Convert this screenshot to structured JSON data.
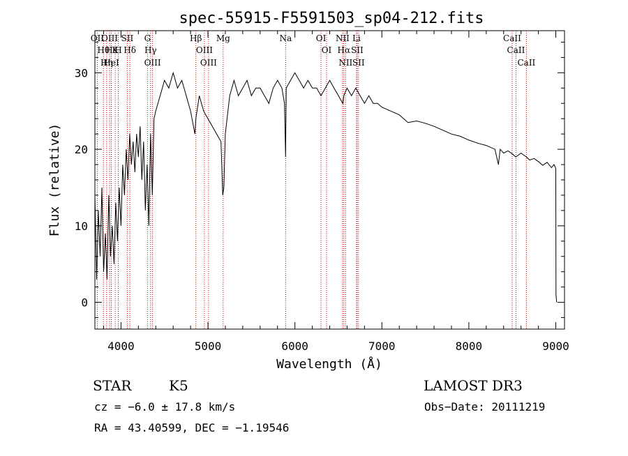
{
  "chart_data": {
    "type": "line",
    "title": "spec-55915-F5591503_sp04-212.fits",
    "xlabel": "Wavelength (Å)",
    "ylabel": "Flux (relative)",
    "xlim": [
      3700,
      9100
    ],
    "ylim": [
      -3.5,
      35.5
    ],
    "x_ticks": [
      4000,
      5000,
      6000,
      7000,
      8000,
      9000
    ],
    "y_ticks": [
      0,
      10,
      20,
      30
    ],
    "grid": false,
    "series": [
      {
        "name": "spectrum",
        "x": [
          3700,
          3720,
          3740,
          3760,
          3780,
          3800,
          3820,
          3840,
          3860,
          3880,
          3900,
          3920,
          3940,
          3960,
          3980,
          4000,
          4020,
          4040,
          4060,
          4080,
          4100,
          4120,
          4140,
          4160,
          4180,
          4200,
          4220,
          4240,
          4260,
          4280,
          4300,
          4320,
          4340,
          4360,
          4380,
          4400,
          4450,
          4500,
          4550,
          4600,
          4650,
          4700,
          4750,
          4800,
          4850,
          4861,
          4900,
          4950,
          5000,
          5050,
          5100,
          5150,
          5170,
          5183,
          5200,
          5250,
          5300,
          5350,
          5400,
          5450,
          5500,
          5550,
          5600,
          5650,
          5700,
          5750,
          5800,
          5850,
          5880,
          5893,
          5900,
          5950,
          6000,
          6050,
          6100,
          6150,
          6200,
          6250,
          6300,
          6350,
          6400,
          6450,
          6500,
          6550,
          6563,
          6600,
          6650,
          6700,
          6750,
          6800,
          6850,
          6900,
          6950,
          7000,
          7100,
          7200,
          7300,
          7400,
          7500,
          7600,
          7700,
          7800,
          7900,
          8000,
          8100,
          8200,
          8300,
          8340,
          8360,
          8400,
          8450,
          8500,
          8540,
          8600,
          8662,
          8700,
          8750,
          8800,
          8850,
          8900,
          8950,
          8980,
          9000,
          9002,
          9010
        ],
        "values": [
          14,
          3,
          12,
          6,
          15,
          4,
          9,
          3,
          14,
          6,
          10,
          5,
          13,
          8,
          15,
          10,
          18,
          14,
          20,
          16,
          22,
          18,
          21,
          17,
          22,
          19,
          23,
          16,
          21,
          12,
          18,
          10,
          22,
          14,
          24,
          25,
          27,
          29,
          28,
          30,
          28,
          29,
          27,
          25,
          22,
          24,
          27,
          25,
          24,
          23,
          22,
          21,
          14,
          15,
          22,
          27,
          29,
          27,
          28,
          29,
          27,
          28,
          28,
          27,
          26,
          28,
          29,
          28,
          26,
          19,
          28,
          29,
          30,
          29,
          28,
          29,
          28,
          28,
          27,
          28,
          29,
          28,
          27,
          26,
          27,
          28,
          27,
          28,
          27,
          26,
          27,
          26,
          26,
          25.5,
          25,
          24.5,
          23.5,
          23.7,
          23.4,
          23,
          22.5,
          22,
          21.7,
          21.2,
          20.8,
          20.5,
          20,
          18,
          20,
          19.5,
          19.8,
          19.4,
          19,
          19.5,
          19,
          18.6,
          18.8,
          18.4,
          17.9,
          18.3,
          17.6,
          18,
          17.5,
          1,
          0
        ]
      }
    ],
    "lines": [
      {
        "label": "Hθ",
        "x": 3798
      },
      {
        "label": "OII",
        "x": 3727
      },
      {
        "label": "OIII",
        "x": 3869
      },
      {
        "label": "Hε",
        "x": 3889
      },
      {
        "label": "Hη",
        "x": 3835
      },
      {
        "label": "K",
        "x": 3934
      },
      {
        "label": "HeI",
        "x": 3889
      },
      {
        "label": "H",
        "x": 3969
      },
      {
        "label": "SII",
        "x": 4072
      },
      {
        "label": "Hδ",
        "x": 4102
      },
      {
        "label": "OIII",
        "x": 4363
      },
      {
        "label": "Hγ",
        "x": 4340
      },
      {
        "label": "G",
        "x": 4305
      },
      {
        "label": "Hβ",
        "x": 4861
      },
      {
        "label": "OIII",
        "x": 4959
      },
      {
        "label": "OIII",
        "x": 5007
      },
      {
        "label": "Mg",
        "x": 5175
      },
      {
        "label": "Na",
        "x": 5893
      },
      {
        "label": "OI",
        "x": 6300
      },
      {
        "label": "OI",
        "x": 6364
      },
      {
        "label": "Hα",
        "x": 6563
      },
      {
        "label": "NII",
        "x": 6548
      },
      {
        "label": "NII",
        "x": 6583
      },
      {
        "label": "SII",
        "x": 6716
      },
      {
        "label": "Li",
        "x": 6708
      },
      {
        "label": "SII",
        "x": 6731
      },
      {
        "label": "CaII",
        "x": 8498
      },
      {
        "label": "CaII",
        "x": 8542
      },
      {
        "label": "CaII",
        "x": 8662
      }
    ]
  },
  "info": {
    "object_class": "STAR",
    "subclass": "K5",
    "survey": "LAMOST DR3",
    "velocity": "cz = −6.0 ± 17.8 km/s",
    "obs_date": "Obs−Date: 20111219",
    "coords": "RA =  43.40599, DEC =  −1.19546"
  },
  "colors": {
    "spectrum": "#000000",
    "marker_lines": "#cc0000",
    "axes": "#000000"
  }
}
